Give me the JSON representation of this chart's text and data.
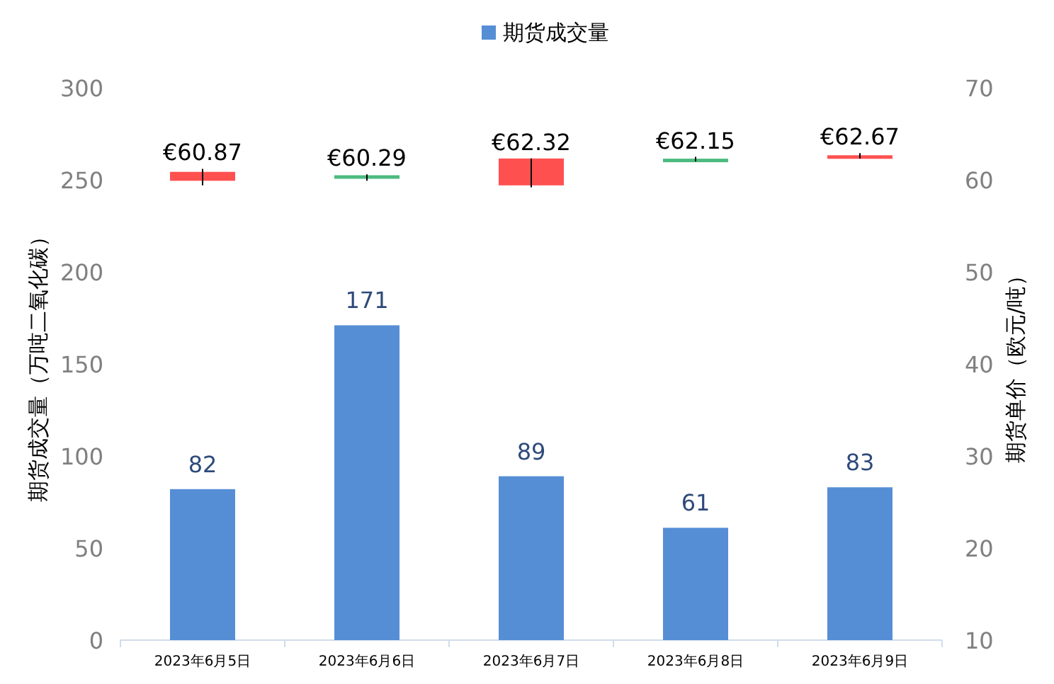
{
  "chart_data": {
    "type": "bar",
    "legend": "top",
    "ylabel": "期货成交量（万吨二氧化碳）",
    "y2label": "期货单价（欧元/吨）",
    "categories": [
      "2023年6月5日",
      "2023年6月6日",
      "2023年6月7日",
      "2023年6月8日",
      "2023年6月9日"
    ],
    "ylim": [
      0,
      300
    ],
    "yticks": [
      0,
      50,
      100,
      150,
      200,
      250,
      300
    ],
    "y2lim": [
      10,
      70
    ],
    "y2ticks": [
      10,
      20,
      30,
      40,
      50,
      60,
      70
    ],
    "series": [
      {
        "name": "期货成交量",
        "color": "#558ed5",
        "values": [
          82,
          171,
          89,
          61,
          83
        ],
        "value_labels": [
          "82",
          "171",
          "89",
          "61",
          "83"
        ]
      },
      {
        "type": "candlestick",
        "axis": "y2",
        "colors": [
          "#ff5050",
          "#4cbb7f",
          "#ff5050",
          "#4cbb7f",
          "#ff5050"
        ],
        "ohlc": [
          [
            59.9,
            61.2,
            59.4,
            60.87
          ],
          [
            60.5,
            60.6,
            59.9,
            60.29
          ],
          [
            59.4,
            62.32,
            59.2,
            62.32
          ],
          [
            62.3,
            62.5,
            62.0,
            62.15
          ],
          [
            62.5,
            62.9,
            62.3,
            62.67
          ]
        ],
        "value_labels": [
          "€60.87",
          "€60.29",
          "€62.32",
          "€62.15",
          "€62.67"
        ]
      }
    ]
  }
}
